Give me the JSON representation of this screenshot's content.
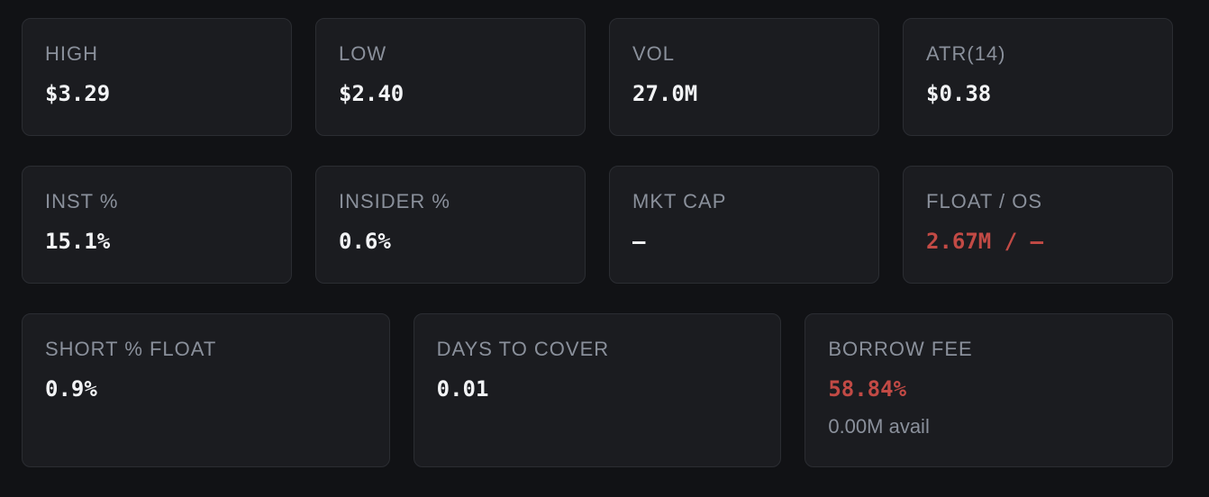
{
  "rows": [
    [
      {
        "label": "HIGH",
        "value": "$3.29"
      },
      {
        "label": "LOW",
        "value": "$2.40"
      },
      {
        "label": "VOL",
        "value": "27.0M"
      },
      {
        "label": "ATR(14)",
        "value": "$0.38"
      }
    ],
    [
      {
        "label": "INST %",
        "value": "15.1%"
      },
      {
        "label": "INSIDER %",
        "value": "0.6%"
      },
      {
        "label": "MKT CAP",
        "value": "—"
      },
      {
        "label": "FLOAT / OS",
        "value": "2.67M / —",
        "color": "#c24a45"
      }
    ],
    [
      {
        "label": "SHORT % FLOAT",
        "value": "0.9%"
      },
      {
        "label": "DAYS TO COVER",
        "value": "0.01"
      },
      {
        "label": "BORROW FEE",
        "value": "58.84%",
        "color": "#c24a45",
        "sub": "0.00M avail"
      }
    ]
  ]
}
